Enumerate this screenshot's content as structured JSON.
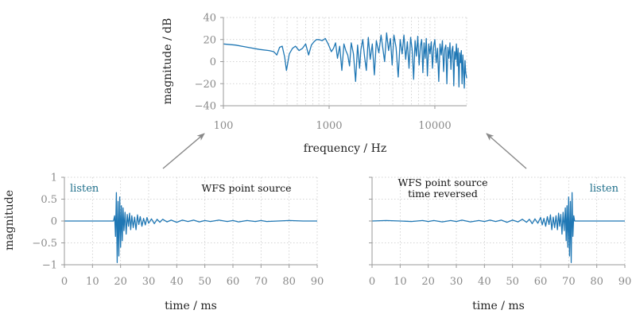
{
  "accent_color": "#1f77b4",
  "link_color": "#1f6f8b",
  "chart_data": [
    {
      "id": "spectrum",
      "type": "line",
      "xlabel": "frequency / Hz",
      "ylabel": "magnitude / dB",
      "xscale": "log",
      "xlim": [
        100,
        20000
      ],
      "ylim": [
        -40,
        40
      ],
      "xticks": [
        100,
        1000,
        10000
      ],
      "xtick_labels": [
        "100",
        "1000",
        "10000"
      ],
      "yticks": [
        -40,
        -20,
        0,
        20,
        40
      ],
      "ytick_labels": [
        "−40",
        "−20",
        "0",
        "20",
        "40"
      ],
      "grid": true,
      "series": [
        {
          "x": [
            100,
            130,
            170,
            220,
            270,
            300,
            320,
            340,
            360,
            380,
            395,
            405,
            420,
            450,
            480,
            520,
            560,
            600,
            640,
            680,
            720,
            760,
            800,
            860,
            920,
            980,
            1050,
            1100,
            1150,
            1200,
            1260,
            1320,
            1380,
            1440,
            1500,
            1560,
            1620,
            1700,
            1780,
            1860,
            1940,
            2000,
            2080,
            2160,
            2250,
            2350,
            2450,
            2560,
            2680,
            2800,
            2950,
            3100,
            3200,
            3350,
            3500,
            3650,
            3800,
            3950,
            4100,
            4300,
            4500,
            4700,
            4900,
            5100,
            5300,
            5500,
            5700,
            5900,
            6100,
            6300,
            6500,
            6700,
            6900,
            7100,
            7300,
            7500,
            7700,
            7900,
            8100,
            8300,
            8500,
            8750,
            9000,
            9250,
            9500,
            9750,
            10000,
            10300,
            10600,
            10900,
            11200,
            11500,
            11800,
            12100,
            12400,
            12700,
            13000,
            13300,
            13600,
            13900,
            14200,
            14500,
            14800,
            15100,
            15400,
            15700,
            16000,
            16300,
            16600,
            16900,
            17200,
            17500,
            17800,
            18100,
            18400,
            18700,
            19000,
            19300,
            19600,
            20000
          ],
          "y": [
            16,
            15,
            13,
            11,
            10,
            9,
            6,
            13,
            14,
            4,
            -8,
            -2,
            7,
            12,
            14,
            10,
            12,
            16,
            6,
            15,
            18,
            20,
            20,
            19,
            21,
            16,
            9,
            12,
            17,
            3,
            14,
            -8,
            16,
            10,
            6,
            -4,
            17,
            7,
            -18,
            15,
            -6,
            11,
            20,
            5,
            -8,
            22,
            2,
            16,
            -12,
            19,
            8,
            24,
            14,
            0,
            26,
            10,
            21,
            -3,
            24,
            13,
            -14,
            20,
            7,
            24,
            2,
            18,
            -6,
            22,
            11,
            -16,
            19,
            5,
            23,
            -3,
            14,
            20,
            -10,
            17,
            3,
            21,
            -13,
            16,
            7,
            18,
            -6,
            14,
            20,
            -1,
            12,
            -18,
            16,
            6,
            19,
            -9,
            11,
            15,
            -20,
            13,
            3,
            17,
            -7,
            10,
            14,
            -22,
            9,
            2,
            16,
            -4,
            12,
            -23,
            8,
            -1,
            10,
            -20,
            6,
            -8,
            -24,
            1,
            -10,
            -15
          ]
        }
      ]
    },
    {
      "id": "ir-left",
      "type": "line",
      "title": "WFS point source",
      "xlabel": "time / ms",
      "ylabel": "magnitude",
      "xlim": [
        0,
        90
      ],
      "ylim": [
        -1,
        1
      ],
      "xticks": [
        0,
        10,
        20,
        30,
        40,
        50,
        60,
        70,
        80,
        90
      ],
      "xtick_labels": [
        "0",
        "10",
        "20",
        "30",
        "40",
        "50",
        "60",
        "70",
        "80",
        "90"
      ],
      "yticks": [
        -1,
        -0.5,
        0,
        0.5,
        1
      ],
      "ytick_labels": [
        "−1",
        "−0.5",
        "0",
        "0.5",
        "1"
      ],
      "grid": true,
      "listen_label": "listen",
      "series": [
        {
          "x": [
            0,
            17.5,
            17.9,
            18.2,
            18.5,
            18.8,
            19.1,
            19.4,
            19.7,
            20.0,
            20.3,
            20.6,
            20.9,
            21.2,
            21.6,
            22.0,
            22.4,
            22.8,
            23.2,
            23.6,
            24.0,
            24.5,
            25.0,
            25.5,
            26.0,
            26.5,
            27.0,
            27.6,
            28.2,
            28.8,
            29.4,
            30.0,
            31.0,
            32.0,
            33.0,
            34.0,
            35.0,
            36.5,
            38.0,
            40.0,
            42.0,
            44.0,
            46.0,
            48.0,
            50.0,
            52.0,
            55.0,
            58.0,
            60.0,
            62.0,
            65.0,
            68.0,
            70.0,
            72.0,
            76.0,
            80.0,
            85.0,
            90.0
          ],
          "y": [
            0,
            0,
            0.12,
            -0.35,
            0.65,
            -0.95,
            0.45,
            -0.8,
            0.55,
            -0.6,
            0.35,
            -0.45,
            0.3,
            -0.22,
            0.2,
            -0.3,
            0.15,
            -0.12,
            0.18,
            -0.2,
            0.12,
            -0.15,
            0.09,
            -0.2,
            0.14,
            -0.08,
            0.1,
            -0.12,
            0.06,
            -0.09,
            0.08,
            -0.05,
            0.05,
            -0.06,
            0.04,
            -0.03,
            0.04,
            -0.02,
            0.02,
            -0.03,
            0.02,
            -0.01,
            0.02,
            -0.02,
            0.01,
            -0.01,
            0.02,
            -0.01,
            0.01,
            -0.02,
            0.01,
            -0.01,
            0.01,
            -0.01,
            0,
            0.01,
            0,
            0
          ]
        }
      ]
    },
    {
      "id": "ir-right",
      "type": "line",
      "title": "WFS point source",
      "subtitle": "time reversed",
      "xlabel": "time / ms",
      "ylabel": "",
      "xlim": [
        0,
        90
      ],
      "ylim": [
        -1,
        1
      ],
      "xticks": [
        0,
        10,
        20,
        30,
        40,
        50,
        60,
        70,
        80,
        90
      ],
      "xtick_labels": [
        "0",
        "10",
        "20",
        "30",
        "40",
        "50",
        "60",
        "70",
        "80",
        "90"
      ],
      "yticks": [
        -1,
        -0.5,
        0,
        0.5,
        1
      ],
      "ytick_labels": [
        "",
        "",
        "",
        "",
        ""
      ],
      "grid": true,
      "listen_label": "listen",
      "series": [
        {
          "x": [
            0,
            5,
            10,
            14,
            18,
            20,
            22,
            25,
            28,
            30,
            32,
            35,
            38,
            40,
            42,
            44,
            46,
            48,
            50,
            52,
            53.5,
            55,
            56,
            57,
            58,
            59,
            60,
            60.6,
            61.2,
            61.8,
            62.4,
            63.0,
            63.5,
            64.0,
            64.5,
            65.0,
            65.5,
            66.0,
            66.4,
            66.8,
            67.2,
            67.6,
            68.0,
            68.4,
            68.8,
            69.1,
            69.4,
            69.7,
            70.0,
            70.3,
            70.6,
            70.9,
            71.2,
            71.5,
            71.8,
            72.1,
            72.5,
            90.0
          ],
          "y": [
            0,
            0.01,
            0,
            -0.01,
            0.01,
            -0.01,
            0.01,
            -0.02,
            0.01,
            -0.01,
            0.02,
            -0.02,
            0.01,
            -0.01,
            0.02,
            -0.01,
            0.02,
            -0.03,
            0.02,
            -0.02,
            0.04,
            -0.03,
            0.04,
            -0.06,
            0.05,
            -0.05,
            0.08,
            -0.09,
            0.06,
            -0.12,
            0.1,
            -0.08,
            0.14,
            -0.2,
            0.09,
            -0.15,
            0.12,
            -0.2,
            0.18,
            -0.12,
            0.15,
            -0.3,
            0.2,
            -0.22,
            0.3,
            -0.45,
            0.35,
            -0.6,
            0.55,
            -0.8,
            0.45,
            -0.95,
            0.65,
            -0.35,
            0.12,
            0,
            0,
            0
          ]
        }
      ]
    }
  ]
}
